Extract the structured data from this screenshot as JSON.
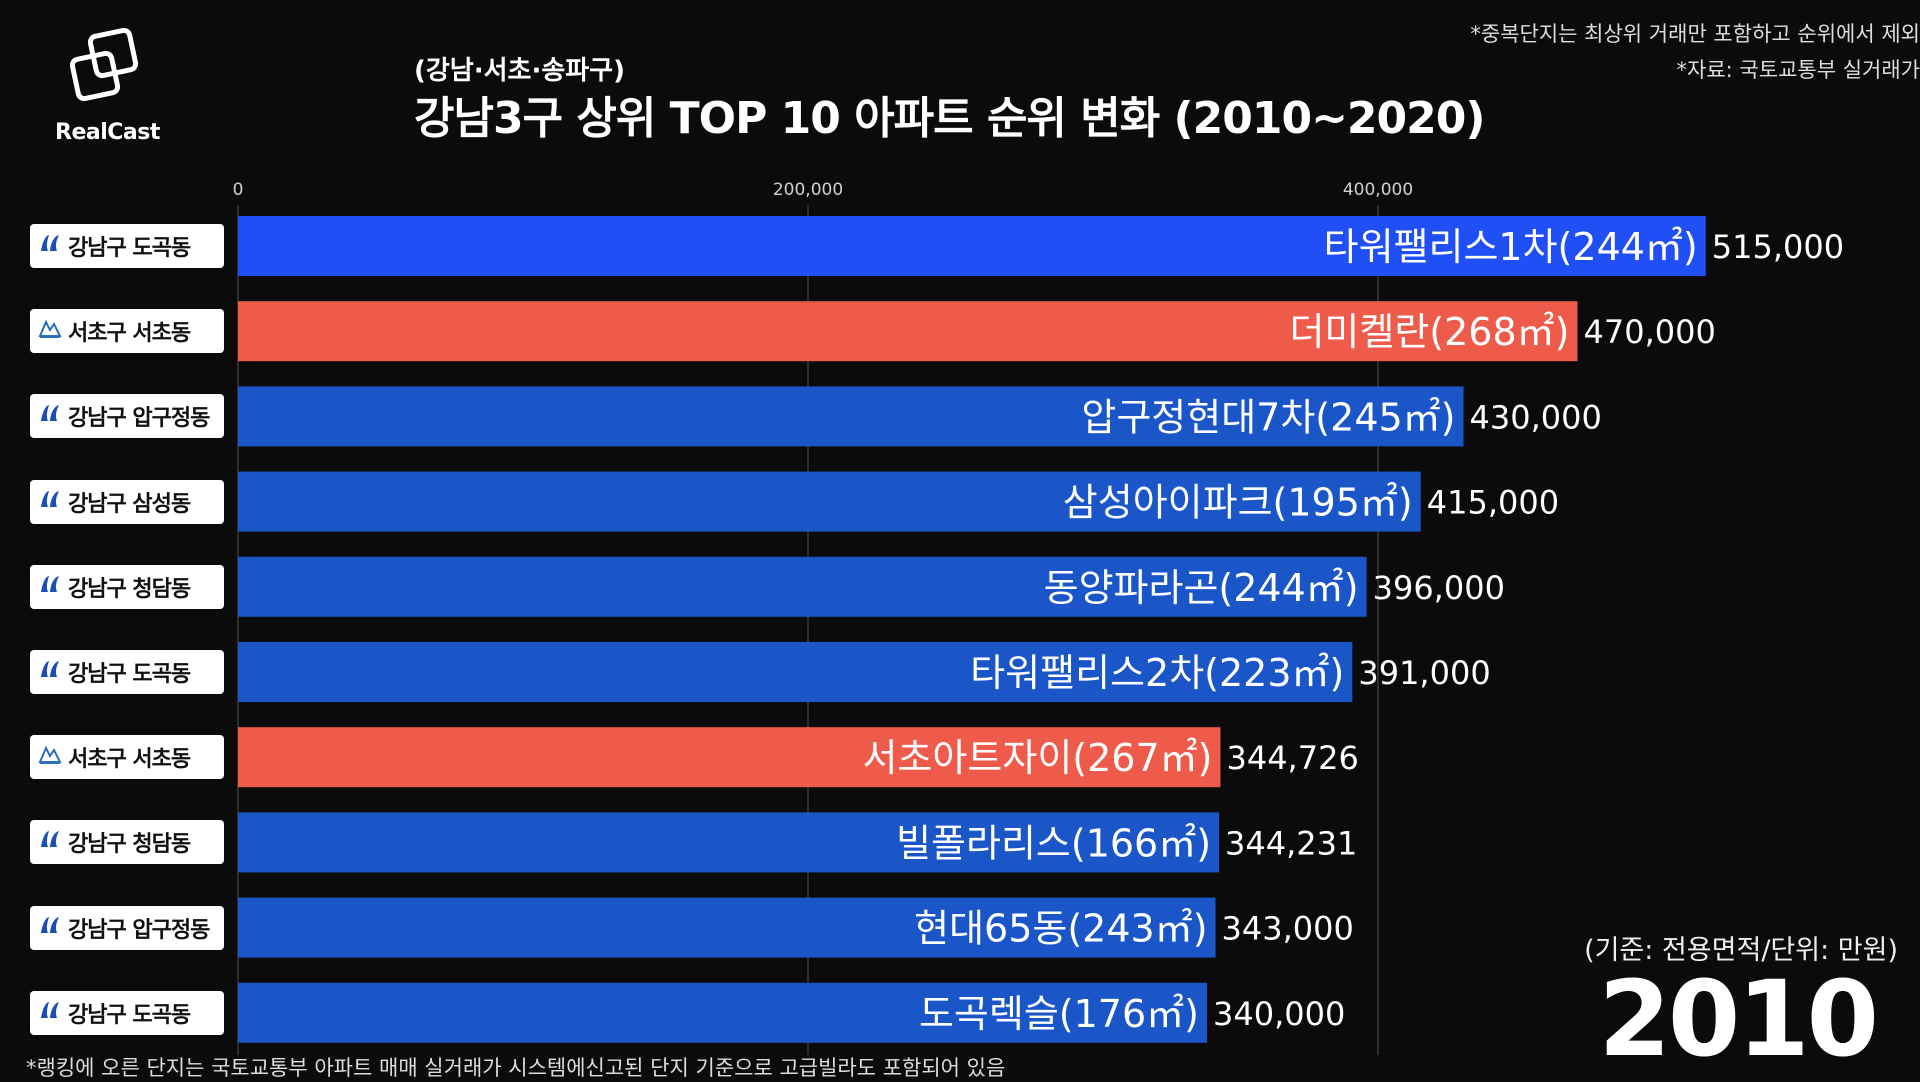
{
  "header": {
    "logo_text": "RealCast",
    "subtitle": "(강남·서초·송파구)",
    "title": "강남3구 상위 TOP 10 아파트 순위 변화 (2010~2020)",
    "note1": "*중복단지는 최상위 거래만 포함하고 순위에서 제외",
    "note2": "*자료: 국토교통부 실거래가"
  },
  "footer": {
    "footnote": "*랭킹에 오른 단지는 국토교통부 아파트 매매 실거래가 시스템에신고된 단지 기준으로 고급빌라도 포함되어 있음",
    "unit_note": "(기준: 전용면적/단위: 만원)",
    "year": "2010"
  },
  "colors": {
    "gangnam": "#1a56c8",
    "gangnam_top": "#1f4ff5",
    "seocho": "#ef5b4b",
    "background": "#0b0b0b"
  },
  "chart_data": {
    "type": "bar",
    "orientation": "horizontal",
    "xlim": [
      0,
      515000
    ],
    "xticks": [
      0,
      200000,
      400000
    ],
    "xtick_labels": [
      "0",
      "200,000",
      "400,000"
    ],
    "grid": true,
    "categories": [
      "타워팰리스1차(244㎡)",
      "더미켈란(268㎡)",
      "압구정현대7차(245㎡)",
      "삼성아이파크(195㎡)",
      "동양파라곤(244㎡)",
      "타워팰리스2차(223㎡)",
      "서초아트자이(267㎡)",
      "빌폴라리스(166㎡)",
      "현대65동(243㎡)",
      "도곡렉슬(176㎡)"
    ],
    "values": [
      515000,
      470000,
      430000,
      415000,
      396000,
      391000,
      344726,
      344231,
      343000,
      340000
    ],
    "value_labels": [
      "515,000",
      "470,000",
      "430,000",
      "415,000",
      "396,000",
      "391,000",
      "344,726",
      "344,231",
      "343,000",
      "340,000"
    ],
    "districts": [
      "강남구 도곡동",
      "서초구 서초동",
      "강남구 압구정동",
      "강남구 삼성동",
      "강남구 청담동",
      "강남구 도곡동",
      "서초구 서초동",
      "강남구 청담동",
      "강남구 압구정동",
      "강남구 도곡동"
    ],
    "gu": [
      "gangnam",
      "seocho",
      "gangnam",
      "gangnam",
      "gangnam",
      "gangnam",
      "seocho",
      "gangnam",
      "gangnam",
      "gangnam"
    ]
  }
}
